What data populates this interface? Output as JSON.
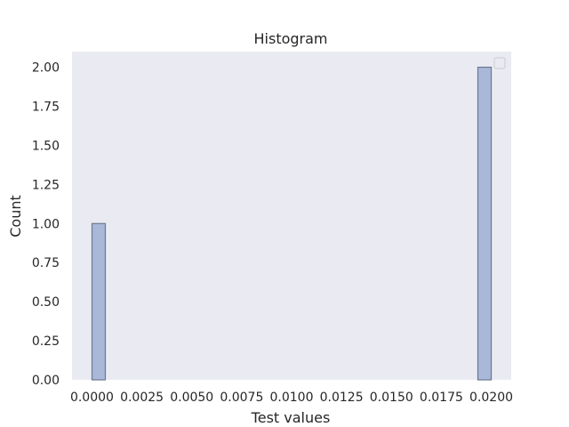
{
  "chart_data": {
    "type": "bar",
    "title": "Histogram",
    "xlabel": "Test values",
    "ylabel": "Count",
    "xlim": [
      -0.001,
      0.021
    ],
    "ylim": [
      0,
      2.1
    ],
    "x_ticks": [
      0.0,
      0.0025,
      0.005,
      0.0075,
      0.01,
      0.0125,
      0.015,
      0.0175,
      0.02
    ],
    "x_tick_labels": [
      "0.0000",
      "0.0025",
      "0.0050",
      "0.0075",
      "0.0100",
      "0.0125",
      "0.0150",
      "0.0175",
      "0.0200"
    ],
    "y_ticks": [
      0.0,
      0.25,
      0.5,
      0.75,
      1.0,
      1.25,
      1.5,
      1.75,
      2.0
    ],
    "y_tick_labels": [
      "0.00",
      "0.25",
      "0.50",
      "0.75",
      "1.00",
      "1.25",
      "1.50",
      "1.75",
      "2.00"
    ],
    "bars": [
      {
        "x_start": 0.0,
        "x_end": 0.00067,
        "count": 1
      },
      {
        "x_start": 0.01933,
        "x_end": 0.02,
        "count": 2
      }
    ],
    "grid": false,
    "legend": "top-right, empty",
    "colors": {
      "background": "#EAEAF2",
      "bar_fill": "#A9B7D8",
      "bar_edge": "#6B7A8F"
    }
  }
}
